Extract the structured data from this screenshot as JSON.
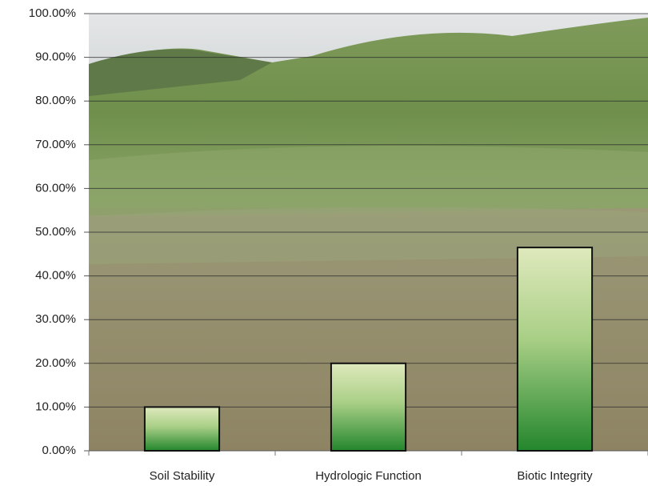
{
  "chart_data": {
    "type": "bar",
    "categories": [
      "Soil Stability",
      "Hydrologic Function",
      "Biotic Integrity"
    ],
    "values": [
      10,
      20,
      46.5
    ],
    "ylim": [
      0,
      100
    ],
    "yticks": [
      {
        "value": 0,
        "label": "0.00%"
      },
      {
        "value": 10,
        "label": "10.00%"
      },
      {
        "value": 20,
        "label": "20.00%"
      },
      {
        "value": 30,
        "label": "30.00%"
      },
      {
        "value": 40,
        "label": "40.00%"
      },
      {
        "value": 50,
        "label": "50.00%"
      },
      {
        "value": 60,
        "label": "60.00%"
      },
      {
        "value": 70,
        "label": "70.00%"
      },
      {
        "value": 80,
        "label": "80.00%"
      },
      {
        "value": 90,
        "label": "90.00%"
      },
      {
        "value": 100,
        "label": "100.00%"
      }
    ],
    "grid": true
  }
}
